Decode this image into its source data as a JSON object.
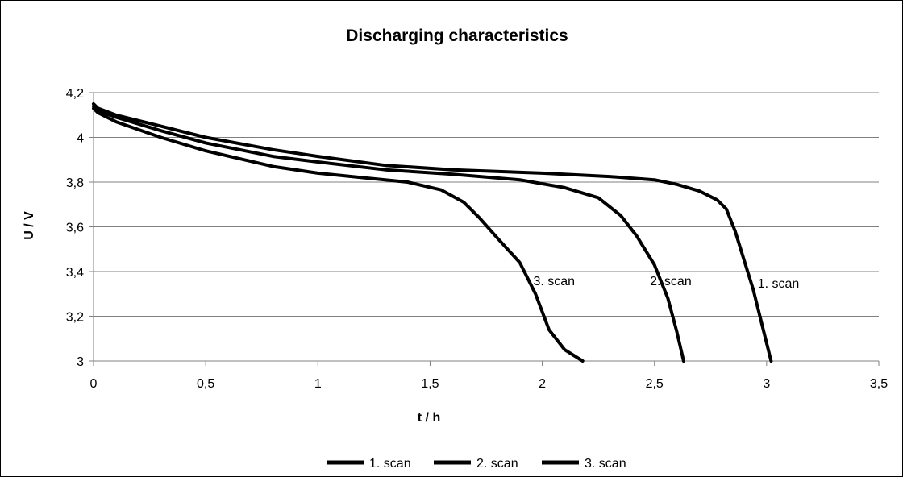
{
  "chart_data": {
    "type": "line",
    "title": "Discharging characteristics",
    "xlabel": "t / h",
    "ylabel": "U / V",
    "xlim": [
      0,
      3.5
    ],
    "ylim": [
      3,
      4.2
    ],
    "xticks": [
      "0",
      "0,5",
      "1",
      "1,5",
      "2",
      "2,5",
      "3",
      "3,5"
    ],
    "yticks": [
      "3",
      "3,2",
      "3,4",
      "3,6",
      "3,8",
      "4",
      "4,2"
    ],
    "grid": "horizontal",
    "legend": "bottom",
    "series": [
      {
        "name": "1. scan",
        "color": "#000000",
        "x": [
          0,
          0.02,
          0.1,
          0.3,
          0.5,
          0.8,
          1.0,
          1.3,
          1.6,
          2.0,
          2.3,
          2.5,
          2.6,
          2.7,
          2.78,
          2.82,
          2.86,
          2.9,
          2.94,
          2.98,
          3.02
        ],
        "y": [
          4.15,
          4.13,
          4.1,
          4.05,
          4.0,
          3.945,
          3.915,
          3.875,
          3.855,
          3.84,
          3.825,
          3.81,
          3.79,
          3.76,
          3.72,
          3.68,
          3.58,
          3.45,
          3.32,
          3.16,
          3.0
        ]
      },
      {
        "name": "2. scan",
        "color": "#000000",
        "x": [
          0,
          0.02,
          0.1,
          0.3,
          0.5,
          0.8,
          1.0,
          1.3,
          1.6,
          1.9,
          2.1,
          2.25,
          2.35,
          2.42,
          2.5,
          2.56,
          2.6,
          2.63
        ],
        "y": [
          4.14,
          4.12,
          4.09,
          4.03,
          3.975,
          3.915,
          3.89,
          3.855,
          3.835,
          3.81,
          3.775,
          3.73,
          3.65,
          3.56,
          3.43,
          3.28,
          3.13,
          3.0
        ]
      },
      {
        "name": "3. scan",
        "color": "#000000",
        "x": [
          0,
          0.02,
          0.1,
          0.3,
          0.5,
          0.8,
          1.0,
          1.2,
          1.4,
          1.55,
          1.65,
          1.72,
          1.8,
          1.9,
          1.97,
          2.03,
          2.1,
          2.18
        ],
        "y": [
          4.13,
          4.11,
          4.07,
          4.0,
          3.94,
          3.87,
          3.84,
          3.82,
          3.8,
          3.765,
          3.71,
          3.64,
          3.55,
          3.44,
          3.3,
          3.14,
          3.05,
          3.0
        ]
      }
    ],
    "annotations": [
      {
        "text": "1. scan",
        "x": 2.96,
        "y": 3.35
      },
      {
        "text": "2. scan",
        "x": 2.48,
        "y": 3.36
      },
      {
        "text": "3. scan",
        "x": 1.96,
        "y": 3.36
      }
    ]
  }
}
